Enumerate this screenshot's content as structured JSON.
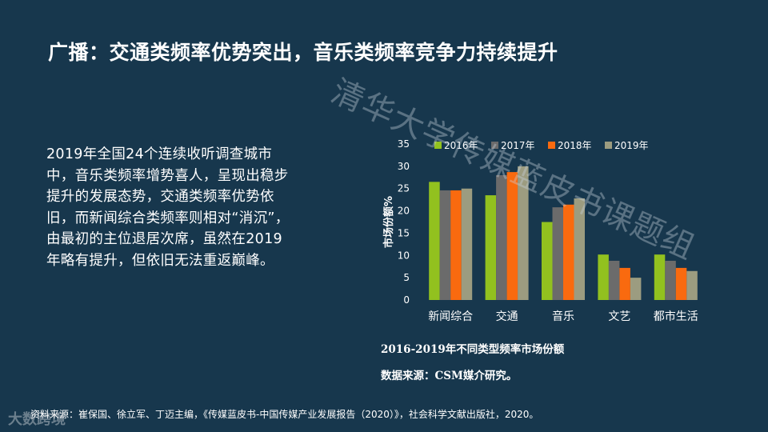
{
  "slide": {
    "title": "广播：交通类频率优势突出，音乐类频率竞争力持续提升",
    "body": "2019年全国24个连续收听调查城市中，音乐类频率增势喜人，呈现出稳步提升的发展态势，交通类频率优势依旧，而新闻综合类频率则相对“消沉”，由最初的主位退居次席，虽然在2019年略有提升，但依旧无法重返巅峰。",
    "watermark": "清华大学传媒蓝皮书课题组",
    "chart_caption": "2016-2019年不同类型频率市场份额",
    "chart_source": "数据来源：CSM媒介研究。",
    "footnote": "资料来源：崔保国、徐立军、丁迈主编，《传媒蓝皮书-中国传媒产业发展报告（2020）》，社会科学文献出版社，2020。",
    "logo": "大数跨境"
  },
  "chart_data": {
    "type": "bar",
    "categories": [
      "新闻综合",
      "交通",
      "音乐",
      "文艺",
      "都市生活"
    ],
    "series": [
      {
        "name": "2016年",
        "color": "#92c11f",
        "values": [
          26.5,
          23.5,
          17.5,
          10.2,
          10.2
        ]
      },
      {
        "name": "2017年",
        "color": "#6b6b6b",
        "values": [
          24.6,
          28.0,
          20.8,
          8.8,
          8.8
        ]
      },
      {
        "name": "2018年",
        "color": "#f96a0f",
        "values": [
          24.6,
          28.7,
          21.4,
          7.2,
          7.2
        ]
      },
      {
        "name": "2019年",
        "color": "#9c9c80",
        "values": [
          25.0,
          30.0,
          22.8,
          5.0,
          6.5
        ]
      }
    ],
    "ylabel": "市场份额%",
    "ylim": [
      0,
      35
    ],
    "yticks": [
      0,
      5,
      10,
      15,
      20,
      25,
      30,
      35
    ],
    "legend_position": "top",
    "grid": false
  }
}
